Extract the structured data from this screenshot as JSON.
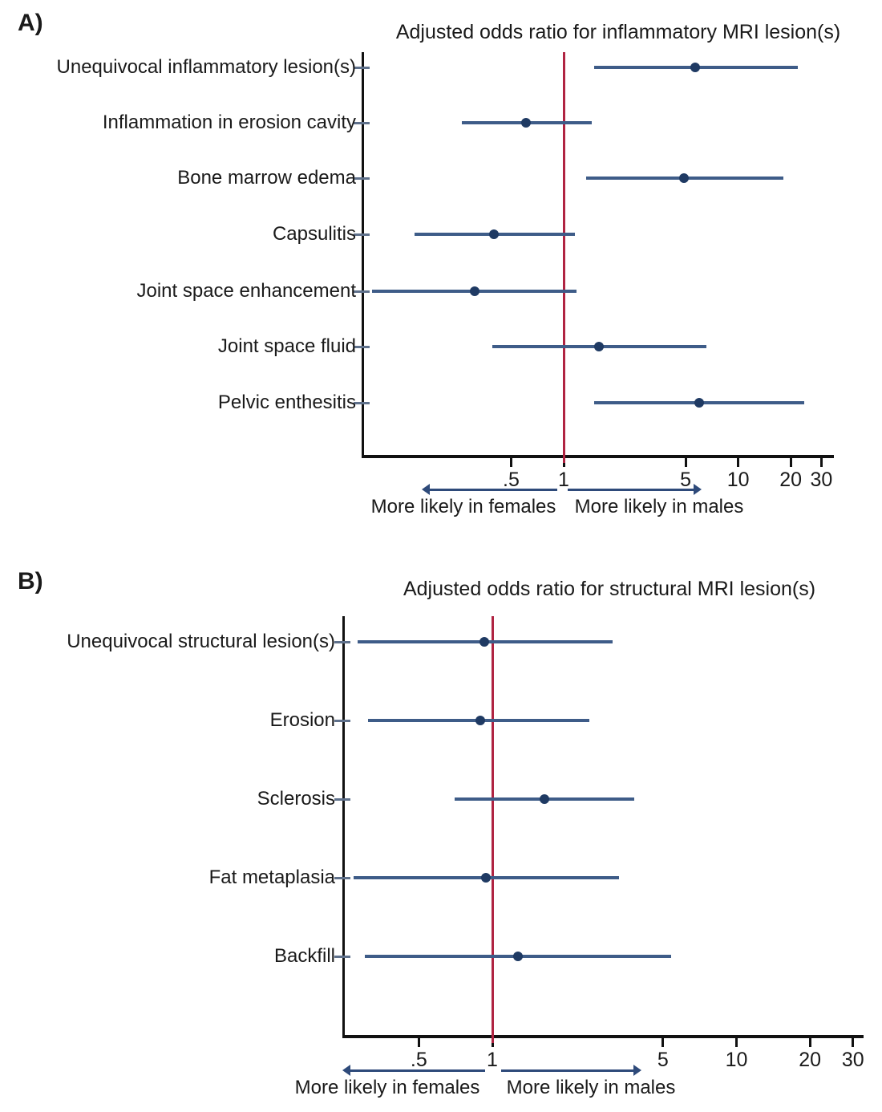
{
  "figure": {
    "panel_a_label": "A)",
    "panel_b_label": "B)"
  },
  "colors": {
    "ci_line": "#3e5c88",
    "point": "#1f3a63",
    "ref_line": "#b02442",
    "axis": "#111111",
    "row_tick": "#5f718c",
    "arrow": "#2e4a7a",
    "text": "#1a1a1a"
  },
  "chart_data": [
    {
      "type": "scatter",
      "subtype": "forest-plot",
      "title": "Adjusted odds ratio for inflammatory MRI lesion(s)",
      "x_scale": "log10",
      "x_ticks": [
        ".5",
        "1",
        "5",
        "10",
        "20",
        "30"
      ],
      "x_tick_values": [
        0.5,
        1,
        5,
        10,
        20,
        30
      ],
      "xlim": [
        0.07,
        35
      ],
      "ref_line_x": 1,
      "grid": false,
      "categories": [
        "Unequivocal inflammatory lesion(s)",
        "Inflammation in erosion cavity",
        "Bone marrow edema",
        "Capsulitis",
        "Joint space enhancement",
        "Joint space fluid",
        "Pelvic enthesitis"
      ],
      "points": [
        {
          "label": "Unequivocal inflammatory lesion(s)",
          "or": 5.7,
          "ci_low": 1.5,
          "ci_high": 21.9
        },
        {
          "label": "Inflammation in erosion cavity",
          "or": 0.61,
          "ci_low": 0.26,
          "ci_high": 1.45
        },
        {
          "label": "Bone marrow edema",
          "or": 4.9,
          "ci_low": 1.35,
          "ci_high": 18.2
        },
        {
          "label": "Capsulitis",
          "or": 0.4,
          "ci_low": 0.14,
          "ci_high": 1.16
        },
        {
          "label": "Joint space enhancement",
          "or": 0.31,
          "ci_low": 0.08,
          "ci_high": 1.18
        },
        {
          "label": "Joint space fluid",
          "or": 1.6,
          "ci_low": 0.39,
          "ci_high": 6.6
        },
        {
          "label": "Pelvic enthesitis",
          "or": 6.0,
          "ci_low": 1.5,
          "ci_high": 24.0
        }
      ],
      "annotations": {
        "left_arrow_label": "More likely in females",
        "right_arrow_label": "More likely in males"
      }
    },
    {
      "type": "scatter",
      "subtype": "forest-plot",
      "title": "Adjusted odds ratio for structural MRI lesion(s)",
      "x_scale": "log10",
      "x_ticks": [
        ".5",
        "1",
        "5",
        "10",
        "20",
        "30"
      ],
      "x_tick_values": [
        0.5,
        1,
        5,
        10,
        20,
        30
      ],
      "xlim": [
        0.25,
        33
      ],
      "ref_line_x": 1,
      "grid": false,
      "categories": [
        "Unequivocal structural lesion(s)",
        "Erosion",
        "Sclerosis",
        "Fat metaplasia",
        "Backfill"
      ],
      "points": [
        {
          "label": "Unequivocal structural lesion(s)",
          "or": 0.93,
          "ci_low": 0.28,
          "ci_high": 3.1
        },
        {
          "label": "Erosion",
          "or": 0.89,
          "ci_low": 0.31,
          "ci_high": 2.5
        },
        {
          "label": "Sclerosis",
          "or": 1.64,
          "ci_low": 0.7,
          "ci_high": 3.8
        },
        {
          "label": "Fat metaplasia",
          "or": 0.94,
          "ci_low": 0.27,
          "ci_high": 3.3
        },
        {
          "label": "Backfill",
          "or": 1.27,
          "ci_low": 0.3,
          "ci_high": 5.4
        }
      ],
      "annotations": {
        "left_arrow_label": "More likely in females",
        "right_arrow_label": "More likely in males"
      }
    }
  ]
}
